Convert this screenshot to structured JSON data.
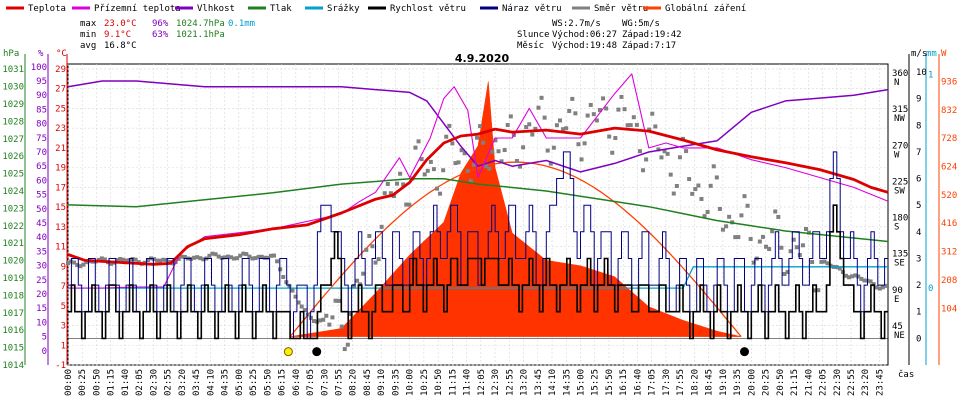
{
  "legend": [
    {
      "key": "teplota",
      "label": "Teplota",
      "color": "#dd0000"
    },
    {
      "key": "prizemni",
      "label": "Přízemní teplota",
      "color": "#dd00dd"
    },
    {
      "key": "vlhkost",
      "label": "Vlhkost",
      "color": "#8000c0"
    },
    {
      "key": "tlak",
      "label": "Tlak",
      "color": "#208020"
    },
    {
      "key": "srazky",
      "label": "Srážky",
      "color": "#00a0d0"
    },
    {
      "key": "rychlost",
      "label": "Rychlost větru",
      "color": "#000000"
    },
    {
      "key": "naraz",
      "label": "Náraz větru",
      "color": "#000080"
    },
    {
      "key": "smer",
      "label": "Směr větru",
      "color": "#808080"
    },
    {
      "key": "zareni",
      "label": "Globální záření",
      "color": "#ff4000"
    }
  ],
  "stats": {
    "max": {
      "label": "max",
      "temp": "23.0°C",
      "hum": "96%",
      "press": "1024.7hPa",
      "rain": "0.1mm"
    },
    "min": {
      "label": "min",
      "temp": "9.1°C",
      "hum": "63%",
      "press": "1021.1hPa"
    },
    "avg": {
      "label": "avg",
      "temp": "16.8°C"
    }
  },
  "info": {
    "ws": "WS:2.7m/s",
    "wg": "WG:5m/s",
    "sun_label": "Slunce",
    "sun_rise": "Východ:06:27",
    "sun_set": "Západ:19:42",
    "moon_label": "Měsíc",
    "moon_rise": "Východ:19:48",
    "moon_set": "Západ:7:17"
  },
  "chart_data": {
    "type": "line",
    "title": "4.9.2020",
    "x_ticks": [
      "00:00",
      "00:25",
      "00:50",
      "01:15",
      "01:40",
      "02:05",
      "02:30",
      "02:55",
      "03:20",
      "03:45",
      "04:10",
      "04:35",
      "05:00",
      "05:25",
      "05:50",
      "06:15",
      "06:40",
      "07:05",
      "07:30",
      "07:55",
      "08:20",
      "08:45",
      "09:10",
      "09:35",
      "10:00",
      "10:25",
      "10:50",
      "11:15",
      "11:40",
      "12:05",
      "12:30",
      "12:55",
      "13:20",
      "13:45",
      "14:10",
      "14:35",
      "15:00",
      "15:25",
      "15:50",
      "16:15",
      "16:40",
      "17:05",
      "17:30",
      "17:55",
      "18:20",
      "18:45",
      "19:10",
      "19:35",
      "20:00",
      "20:25",
      "20:50",
      "21:15",
      "21:40",
      "22:05",
      "22:30",
      "22:55",
      "23:20",
      "23:45"
    ],
    "xlabel": "čas",
    "axes": {
      "hpa": {
        "label": "hPa",
        "ticks": [
          "1014",
          "1015",
          "1016",
          "1017",
          "1018",
          "1019",
          "1020",
          "1021",
          "1022",
          "1023",
          "1024",
          "1025",
          "1026",
          "1027",
          "1028",
          "1029",
          "1030",
          "1031"
        ]
      },
      "pct": {
        "label": "%",
        "ticks": [
          "0",
          "5",
          "10",
          "15",
          "20",
          "25",
          "30",
          "35",
          "40",
          "45",
          "50",
          "55",
          "60",
          "65",
          "70",
          "75",
          "80",
          "85",
          "90",
          "95",
          "100"
        ]
      },
      "temp": {
        "label": "°C",
        "ticks": [
          "-1",
          "1",
          "3",
          "5",
          "7",
          "9",
          "11",
          "13",
          "15",
          "17",
          "19",
          "21",
          "23",
          "25",
          "27",
          "29"
        ]
      },
      "dir": {
        "ticks": [
          "45",
          "NE",
          "90",
          "E",
          "135",
          "SE",
          "180",
          "S",
          "225",
          "SW",
          "270",
          "W",
          "315",
          "NW",
          "360",
          "N"
        ]
      },
      "ms": {
        "label": "m/s",
        "ticks": [
          "0",
          "1",
          "2",
          "3",
          "4",
          "5",
          "6",
          "7",
          "8",
          "9",
          "10"
        ]
      },
      "mm": {
        "label": "mm",
        "ticks": [
          "0",
          "1"
        ]
      },
      "w": {
        "label": "W",
        "ticks": [
          "104",
          "208",
          "312",
          "416",
          "520",
          "624",
          "728",
          "832",
          "936"
        ]
      }
    },
    "series": [
      {
        "name": "Teplota",
        "unit": "°C",
        "x": [
          0,
          0.5,
          1,
          1.5,
          2,
          2.5,
          3,
          3.5,
          4,
          5,
          6,
          7,
          8,
          9,
          9.5,
          10,
          10.5,
          11,
          11.5,
          12,
          12.5,
          13,
          14,
          15,
          16,
          17,
          18,
          19,
          20,
          21,
          22,
          23,
          23.5,
          24
        ],
        "y": [
          10.2,
          9.6,
          9.5,
          9.4,
          9.3,
          9.2,
          9.3,
          11,
          11.8,
          12.2,
          12.8,
          13.2,
          14.4,
          15.8,
          16.2,
          17.5,
          19.8,
          21.5,
          22.2,
          22.4,
          22.9,
          22.6,
          22.8,
          22.4,
          23.0,
          22.7,
          21.8,
          20.8,
          20.1,
          19.5,
          18.8,
          17.8,
          17.0,
          16.5
        ]
      },
      {
        "name": "Přízemní teplota",
        "unit": "°C",
        "x": [
          0,
          1,
          2,
          2.8,
          3.3,
          4,
          6,
          8,
          8.5,
          9,
          9.7,
          10,
          10.6,
          11,
          11.3,
          11.7,
          12,
          12.5,
          13,
          13.5,
          14,
          15,
          16,
          16.5,
          16.8,
          17,
          17.5,
          18,
          19,
          20,
          21,
          22,
          23,
          24
        ],
        "y": [
          6.8,
          6.8,
          6.9,
          6.9,
          10.4,
          12,
          12.8,
          14.3,
          15.5,
          16.5,
          20,
          18,
          22,
          26,
          27.2,
          24.8,
          18,
          22,
          22,
          25,
          22,
          22,
          26.5,
          28.5,
          24,
          21,
          21.5,
          21,
          21,
          19.8,
          19,
          18,
          17,
          15.6
        ]
      },
      {
        "name": "Vlhkost",
        "unit": "%",
        "x": [
          0,
          1,
          2,
          3,
          4,
          5,
          6,
          7,
          8,
          9,
          10,
          10.5,
          11,
          11.5,
          12,
          12.5,
          13,
          14,
          15,
          16,
          17,
          18,
          19,
          20,
          21,
          22,
          23,
          24
        ],
        "y": [
          93,
          95,
          95,
          94,
          93,
          93,
          93,
          93,
          93,
          92,
          91,
          88,
          80,
          72,
          65,
          67,
          65,
          67,
          63,
          66,
          70,
          72,
          74,
          84,
          88,
          89,
          90,
          92
        ]
      },
      {
        "name": "Tlak",
        "unit": "hPa",
        "x": [
          0,
          2,
          4,
          6,
          8,
          10,
          11,
          12,
          13,
          14,
          15,
          16,
          17,
          18,
          19,
          20,
          21,
          22,
          23,
          24
        ],
        "y": [
          1023.2,
          1023.1,
          1023.5,
          1023.9,
          1024.4,
          1024.7,
          1024.7,
          1024.4,
          1024.2,
          1024,
          1023.7,
          1023.4,
          1023.1,
          1022.7,
          1022.3,
          1022,
          1021.7,
          1021.5,
          1021.3,
          1021.1
        ]
      },
      {
        "name": "Srážky",
        "unit": "mm",
        "x": [
          0,
          18,
          18.3,
          24
        ],
        "y": [
          0,
          0,
          0.1,
          0.1
        ]
      },
      {
        "name": "Rychlost větru",
        "unit": "m/s",
        "x": [
          0,
          2,
          4,
          6,
          7,
          7.3,
          7.8,
          8,
          9,
          10,
          11,
          12,
          13,
          14,
          15,
          16,
          17,
          18,
          19,
          20,
          21,
          22,
          22.4,
          23,
          24
        ],
        "y": [
          1,
          1,
          1,
          1,
          0,
          1,
          4,
          1,
          1,
          2,
          2,
          3,
          2,
          2,
          2,
          2,
          1.5,
          1,
          1,
          1,
          1,
          1,
          4,
          1,
          1
        ]
      },
      {
        "name": "Náraz větru",
        "unit": "m/s",
        "x": [
          0,
          1,
          2,
          3,
          4,
          5,
          6,
          7,
          7.6,
          8,
          9,
          10,
          11,
          12,
          13,
          14,
          14.3,
          15,
          16,
          17,
          18,
          19,
          20,
          21,
          22,
          22.4,
          23,
          24
        ],
        "y": [
          2,
          2,
          1.5,
          2,
          2,
          2,
          2,
          1,
          6,
          2,
          3,
          3,
          4,
          3,
          4,
          3,
          7,
          4,
          3,
          3,
          2,
          2,
          2,
          3,
          3,
          6,
          2,
          3
        ]
      },
      {
        "name": "Globální záření",
        "unit": "W",
        "x": [
          6.5,
          8,
          9,
          10,
          11,
          11.5,
          12,
          12.3,
          12.5,
          13,
          14,
          15,
          16,
          17,
          18,
          19,
          19.7
        ],
        "y": [
          0,
          30,
          160,
          300,
          420,
          600,
          700,
          936,
          620,
          380,
          280,
          260,
          220,
          110,
          60,
          20,
          0
        ]
      }
    ],
    "wind_dir": {
      "unit": "°",
      "x": [
        0,
        1,
        2,
        3,
        4,
        5,
        6,
        7,
        8,
        8.5,
        9,
        9.5,
        10,
        11,
        11.5,
        12,
        12.5,
        13,
        13.5,
        14,
        15,
        16,
        17,
        18,
        19,
        20,
        21,
        22,
        23,
        24
      ],
      "y": [
        125,
        130,
        130,
        130,
        135,
        135,
        135,
        60,
        50,
        90,
        165,
        210,
        240,
        250,
        270,
        250,
        280,
        265,
        300,
        290,
        300,
        310,
        280,
        240,
        200,
        160,
        150,
        130,
        110,
        95
      ]
    },
    "clear_sky_radiation": {
      "x": [
        6.5,
        9,
        12.5,
        16,
        19.7
      ],
      "y": [
        0,
        420,
        640,
        420,
        0
      ]
    }
  }
}
